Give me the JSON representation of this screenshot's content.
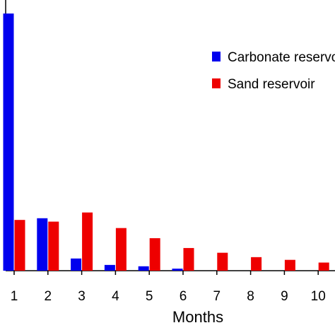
{
  "chart_data": {
    "type": "bar",
    "title": "",
    "xlabel": "Months",
    "ylabel": "",
    "categories": [
      "1",
      "2",
      "3",
      "4",
      "5",
      "6",
      "7",
      "8",
      "9",
      "10"
    ],
    "series": [
      {
        "name": "Carbonate reservoir",
        "color": "#0000ee",
        "values": [
          76,
          15.5,
          3.6,
          1.7,
          1.3,
          0.6,
          0,
          0,
          0,
          0
        ]
      },
      {
        "name": "Sand reservoir",
        "color": "#ee0000",
        "values": [
          15,
          14.5,
          17.2,
          12.6,
          9.6,
          6.7,
          5.3,
          4,
          3.2,
          2.4
        ]
      }
    ],
    "ylim": [
      0,
      80
    ],
    "grid": false,
    "legend_position": "top-right"
  }
}
